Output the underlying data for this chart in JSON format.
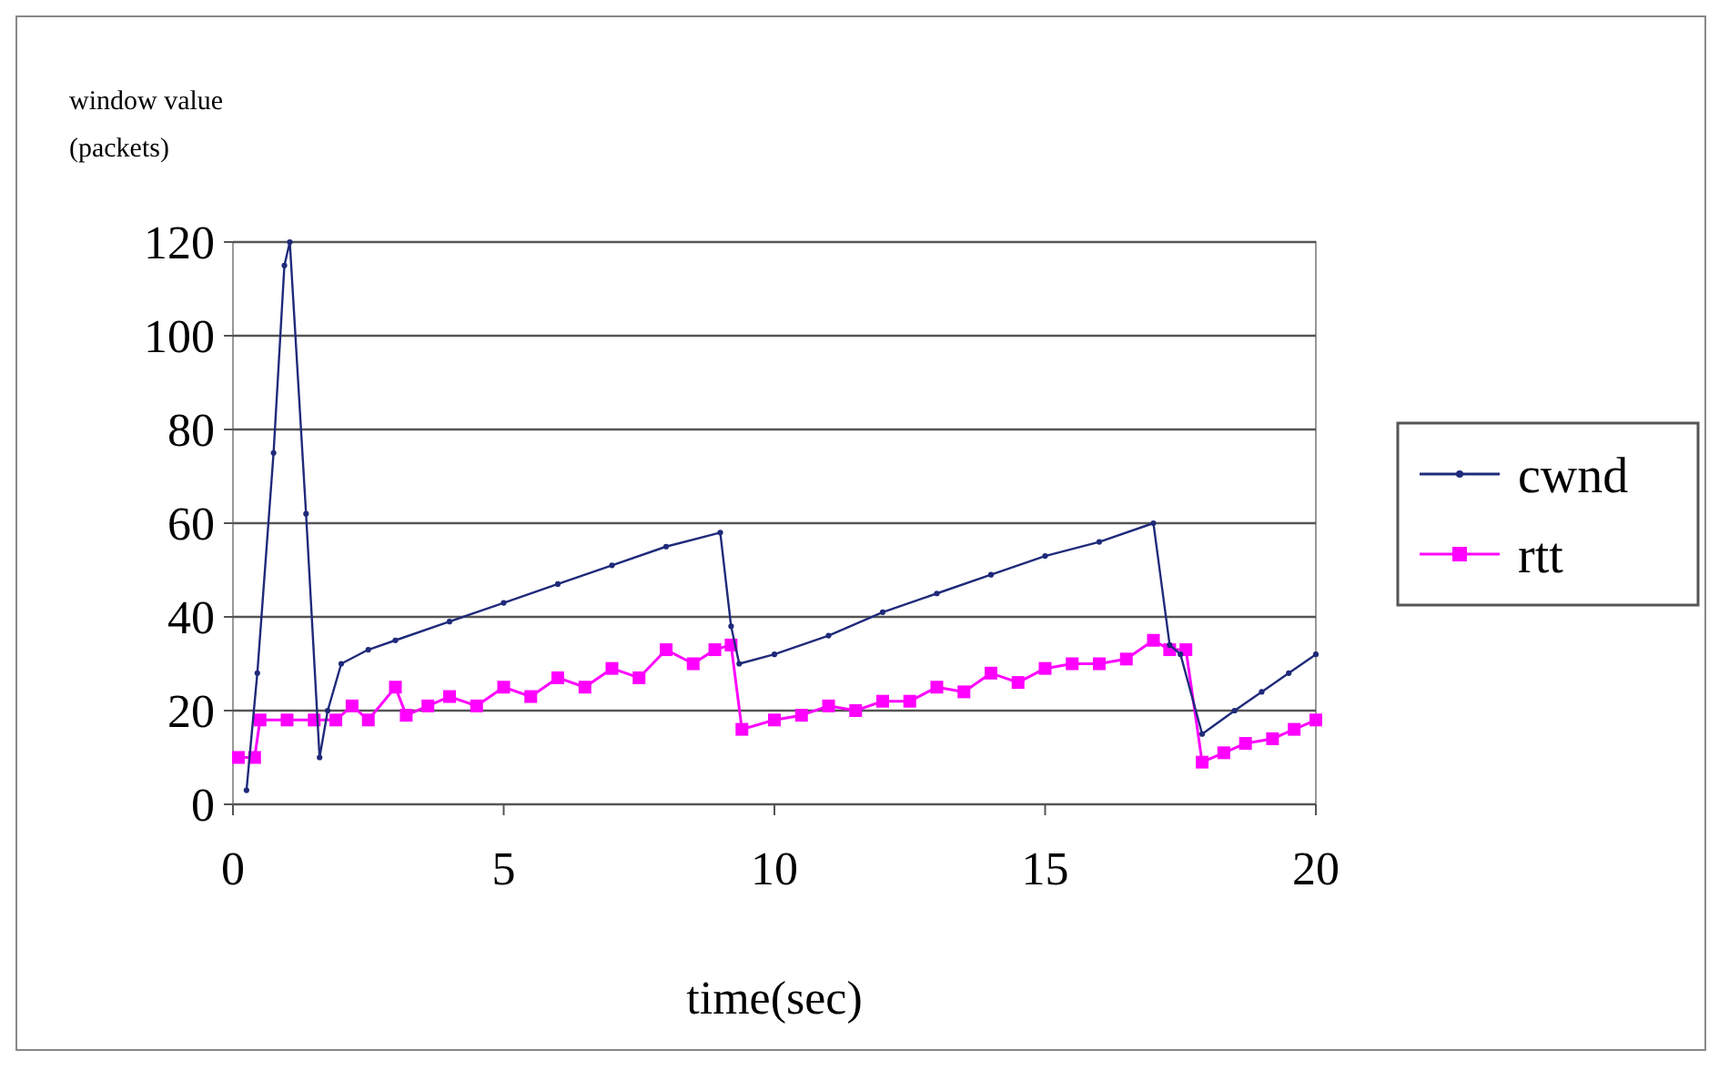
{
  "chart_data": {
    "type": "line",
    "ylabel": "window value\n(packets)",
    "xlabel": "time(sec)",
    "xlim": [
      0,
      20
    ],
    "xticks": [
      0,
      5,
      10,
      15,
      20
    ],
    "ylim": [
      0,
      120
    ],
    "yticks": [
      0,
      20,
      40,
      60,
      80,
      100,
      120
    ],
    "grid": "y",
    "legend": "right",
    "series": [
      {
        "name": "cwnd",
        "color": "#1f2a7a",
        "marker": "circle",
        "x": [
          0.25,
          0.45,
          0.75,
          0.95,
          1.05,
          1.35,
          1.6,
          1.75,
          2.0,
          2.5,
          3,
          4,
          5,
          6,
          7,
          8,
          9,
          9.2,
          9.35,
          10,
          11,
          12,
          13,
          14,
          15,
          16,
          17,
          17.3,
          17.5,
          17.9,
          18.5,
          19,
          19.5,
          20
        ],
        "values": [
          3,
          28,
          75,
          115,
          120,
          62,
          10,
          20,
          30,
          33,
          35,
          39,
          43,
          47,
          51,
          55,
          58,
          38,
          30,
          32,
          36,
          41,
          45,
          49,
          53,
          56,
          60,
          34,
          32,
          15,
          20,
          24,
          28,
          32
        ]
      },
      {
        "name": "rtt",
        "color": "#ff00ff",
        "marker": "square",
        "x": [
          0.1,
          0.4,
          0.5,
          1.0,
          1.5,
          1.9,
          2.2,
          2.5,
          3.0,
          3.2,
          3.6,
          4.0,
          4.5,
          5.0,
          5.5,
          6.0,
          6.5,
          7.0,
          7.5,
          8.0,
          8.5,
          8.9,
          9.2,
          9.4,
          10,
          10.5,
          11,
          11.5,
          12,
          12.5,
          13,
          13.5,
          14,
          14.5,
          15,
          15.5,
          16,
          16.5,
          17,
          17.3,
          17.6,
          17.9,
          18.3,
          18.7,
          19.2,
          19.6,
          20
        ],
        "values": [
          10,
          10,
          18,
          18,
          18,
          18,
          21,
          18,
          25,
          19,
          21,
          23,
          21,
          25,
          23,
          27,
          25,
          29,
          27,
          33,
          30,
          33,
          34,
          16,
          18,
          19,
          21,
          20,
          22,
          22,
          25,
          24,
          28,
          26,
          29,
          30,
          30,
          31,
          35,
          33,
          33,
          9,
          11,
          13,
          14,
          16,
          18
        ]
      }
    ]
  }
}
